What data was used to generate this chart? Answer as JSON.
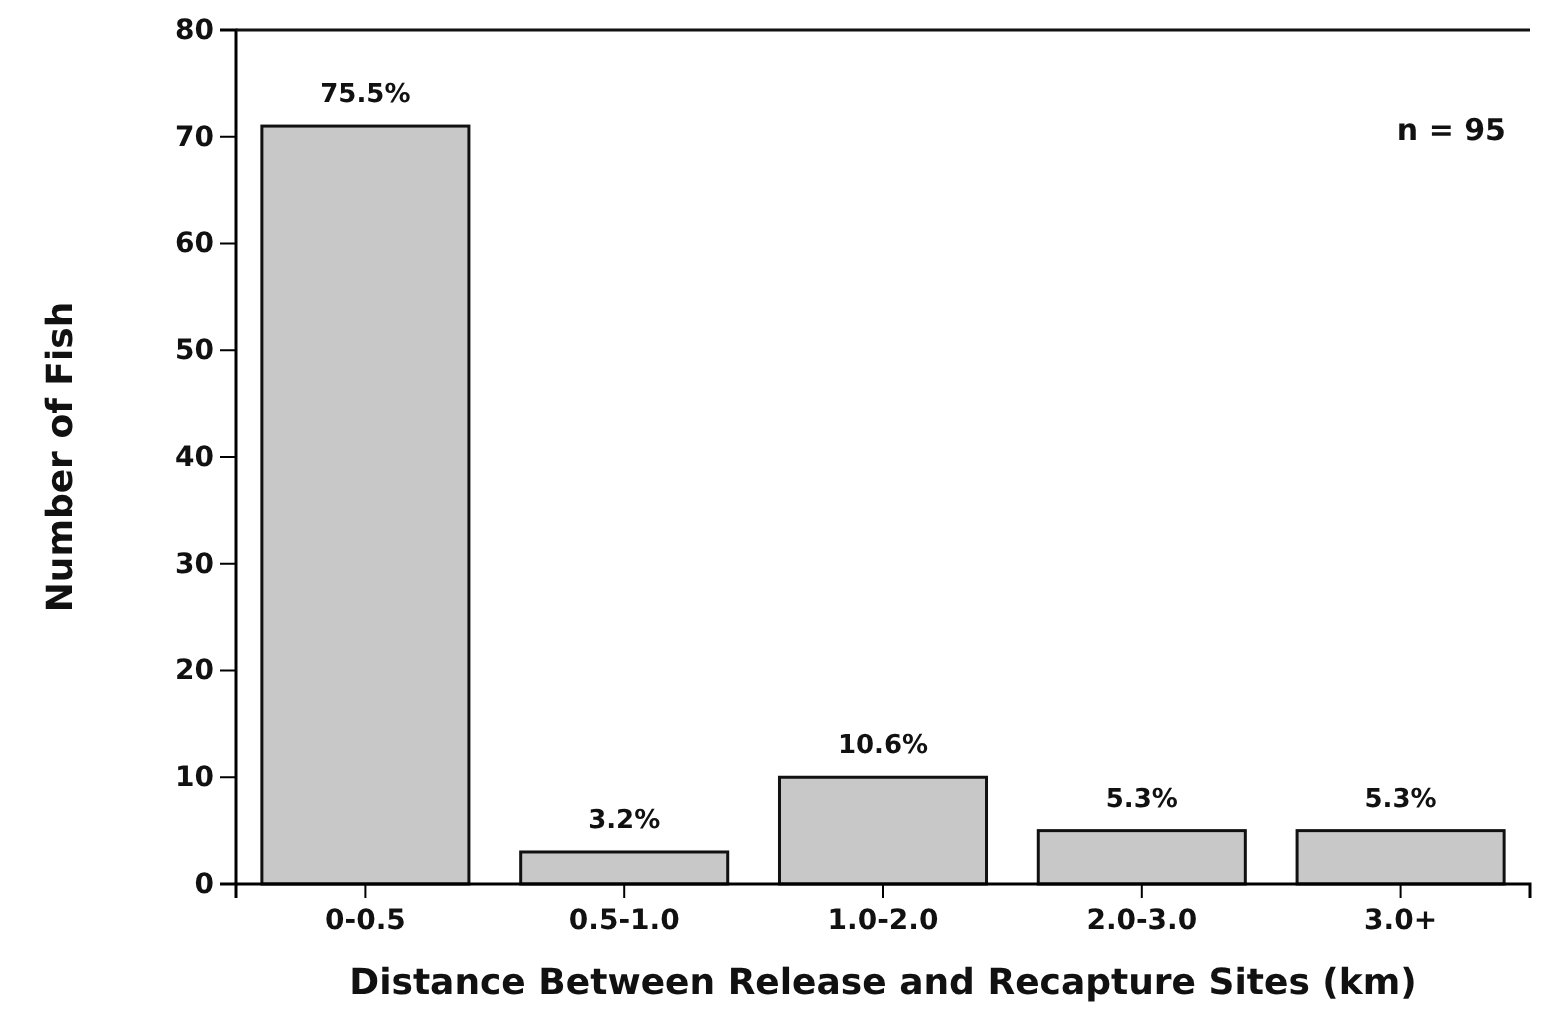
{
  "chart_data": {
    "type": "bar",
    "xlabel": "Distance Between Release and Recapture Sites (km)",
    "ylabel": "Number of Fish",
    "categories": [
      "0-0.5",
      "0.5-1.0",
      "1.0-2.0",
      "2.0-3.0",
      "3.0+"
    ],
    "values": [
      71,
      3,
      10,
      5,
      5
    ],
    "color": "#c8c8c8",
    "ylim": [
      0,
      80
    ],
    "yticks": [
      0,
      10,
      20,
      30,
      40,
      50,
      60,
      70,
      80
    ],
    "grid": false,
    "annotations": [
      "n = 95",
      {
        "text": "75.5%",
        "x": "0-0.5",
        "y": 71
      },
      {
        "text": "3.2%",
        "x": "0.5-1.0",
        "y": 3
      },
      {
        "text": "10.6%",
        "x": "1.0-2.0",
        "y": 10
      },
      {
        "text": "5.3%",
        "x": "2.0-3.0",
        "y": 5
      },
      {
        "text": "5.3%",
        "x": "3.0+",
        "y": 5
      }
    ]
  }
}
